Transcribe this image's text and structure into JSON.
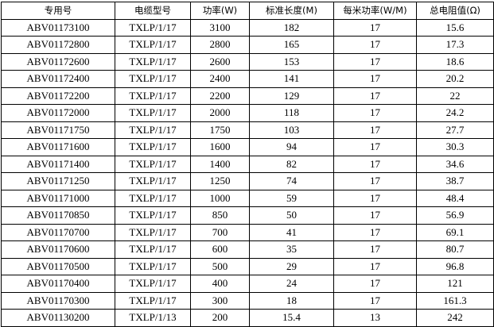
{
  "table": {
    "headers": [
      "专用号",
      "电缆型号",
      "功率(W)",
      "标准长度(M)",
      "每米功率(W/M)",
      "总电阻值(Ω)"
    ],
    "rows": [
      [
        "ABV01173100",
        "TXLP/1/17",
        "3100",
        "182",
        "17",
        "15.6"
      ],
      [
        "ABV01172800",
        "TXLP/1/17",
        "2800",
        "165",
        "17",
        "17.3"
      ],
      [
        "ABV01172600",
        "TXLP/1/17",
        "2600",
        "153",
        "17",
        "18.6"
      ],
      [
        "ABV01172400",
        "TXLP/1/17",
        "2400",
        "141",
        "17",
        "20.2"
      ],
      [
        "ABV01172200",
        "TXLP/1/17",
        "2200",
        "129",
        "17",
        "22"
      ],
      [
        "ABV01172000",
        "TXLP/1/17",
        "2000",
        "118",
        "17",
        "24.2"
      ],
      [
        "ABV01171750",
        "TXLP/1/17",
        "1750",
        "103",
        "17",
        "27.7"
      ],
      [
        "ABV01171600",
        "TXLP/1/17",
        "1600",
        "94",
        "17",
        "30.3"
      ],
      [
        "ABV01171400",
        "TXLP/1/17",
        "1400",
        "82",
        "17",
        "34.6"
      ],
      [
        "ABV01171250",
        "TXLP/1/17",
        "1250",
        "74",
        "17",
        "38.7"
      ],
      [
        "ABV01171000",
        "TXLP/1/17",
        "1000",
        "59",
        "17",
        "48.4"
      ],
      [
        "ABV01170850",
        "TXLP/1/17",
        "850",
        "50",
        "17",
        "56.9"
      ],
      [
        "ABV01170700",
        "TXLP/1/17",
        "700",
        "41",
        "17",
        "69.1"
      ],
      [
        "ABV01170600",
        "TXLP/1/17",
        "600",
        "35",
        "17",
        "80.7"
      ],
      [
        "ABV01170500",
        "TXLP/1/17",
        "500",
        "29",
        "17",
        "96.8"
      ],
      [
        "ABV01170400",
        "TXLP/1/17",
        "400",
        "24",
        "17",
        "121"
      ],
      [
        "ABV01170300",
        "TXLP/1/17",
        "300",
        "18",
        "17",
        "161.3"
      ],
      [
        "ABV01130200",
        "TXLP/1/13",
        "200",
        "15.4",
        "13",
        "242"
      ]
    ]
  }
}
